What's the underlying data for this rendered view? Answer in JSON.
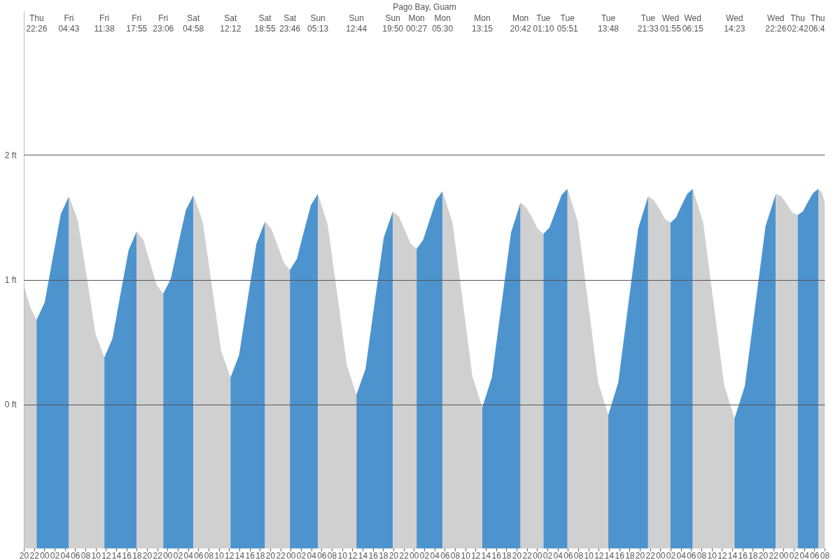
{
  "chart_data": {
    "type": "area",
    "title": "Pago Bay, Guam",
    "series": [
      {
        "color": "#d0d0d0",
        "x": [
          20,
          21.2,
          22.43
        ],
        "values": [
          0.95,
          0.78,
          0.68
        ]
      },
      {
        "color": "#4d94cf",
        "x": [
          22.43,
          24.0,
          25.58,
          27.15,
          28.72
        ],
        "values": [
          0.68,
          0.82,
          1.18,
          1.53,
          1.67
        ]
      },
      {
        "color": "#d0d0d0",
        "x": [
          28.72,
          30.45,
          32.18,
          33.9,
          35.63
        ],
        "values": [
          1.67,
          1.48,
          1.03,
          0.57,
          0.38
        ]
      },
      {
        "color": "#4d94cf",
        "x": [
          35.63,
          37.2,
          38.78,
          40.35,
          41.92
        ],
        "values": [
          0.38,
          0.53,
          0.89,
          1.24,
          1.39
        ]
      },
      {
        "color": "#d0d0d0",
        "x": [
          41.92,
          43.22,
          44.51,
          45.81,
          47.1
        ],
        "values": [
          1.39,
          1.32,
          1.14,
          0.96,
          0.89
        ]
      },
      {
        "color": "#4d94cf",
        "x": [
          47.1,
          48.57,
          50.04,
          51.5,
          52.97
        ],
        "values": [
          0.89,
          1.01,
          1.29,
          1.56,
          1.68
        ]
      },
      {
        "color": "#d0d0d0",
        "x": [
          52.97,
          54.78,
          56.59,
          58.39,
          60.2
        ],
        "values": [
          1.68,
          1.47,
          0.95,
          0.43,
          0.22
        ]
      },
      {
        "color": "#4d94cf",
        "x": [
          60.2,
          61.88,
          63.56,
          65.24,
          66.92
        ],
        "values": [
          0.22,
          0.4,
          0.85,
          1.29,
          1.47
        ]
      },
      {
        "color": "#d0d0d0",
        "x": [
          66.92,
          68.13,
          69.35,
          70.56,
          71.77
        ],
        "values": [
          1.47,
          1.41,
          1.28,
          1.14,
          1.08
        ]
      },
      {
        "color": "#4d94cf",
        "x": [
          71.77,
          73.13,
          74.5,
          75.86,
          77.22
        ],
        "values": [
          1.08,
          1.17,
          1.39,
          1.6,
          1.69
        ]
      },
      {
        "color": "#d0d0d0",
        "x": [
          77.22,
          79.1,
          80.98,
          82.85,
          84.73
        ],
        "values": [
          1.69,
          1.45,
          0.89,
          0.32,
          0.08
        ]
      },
      {
        "color": "#4d94cf",
        "x": [
          84.73,
          86.51,
          88.28,
          90.06,
          91.83
        ],
        "values": [
          0.08,
          0.29,
          0.82,
          1.34,
          1.55
        ]
      },
      {
        "color": "#d0d0d0",
        "x": [
          91.83,
          92.99,
          94.14,
          95.3,
          96.45
        ],
        "values": [
          1.55,
          1.51,
          1.4,
          1.29,
          1.25
        ]
      },
      {
        "color": "#4d94cf",
        "x": [
          96.45,
          97.71,
          98.98,
          100.24,
          101.5
        ],
        "values": [
          1.25,
          1.32,
          1.48,
          1.64,
          1.71
        ]
      },
      {
        "color": "#d0d0d0",
        "x": [
          101.5,
          103.44,
          105.38,
          107.31,
          109.25
        ],
        "values": [
          1.71,
          1.46,
          0.85,
          0.23,
          -0.02
        ]
      },
      {
        "color": "#4d94cf",
        "x": [
          109.25,
          111.11,
          112.98,
          114.84,
          116.7
        ],
        "values": [
          -0.02,
          0.22,
          0.8,
          1.38,
          1.62
        ]
      },
      {
        "color": "#d0d0d0",
        "x": [
          116.7,
          117.82,
          118.94,
          120.05,
          121.17
        ],
        "values": [
          1.62,
          1.58,
          1.5,
          1.41,
          1.37
        ]
      },
      {
        "color": "#4d94cf",
        "x": [
          121.17,
          122.34,
          123.51,
          124.68,
          125.85
        ],
        "values": [
          1.37,
          1.42,
          1.55,
          1.68,
          1.73
        ]
      },
      {
        "color": "#d0d0d0",
        "x": [
          125.85,
          127.84,
          129.83,
          131.81,
          133.8
        ],
        "values": [
          1.73,
          1.47,
          0.83,
          0.18,
          -0.08
        ]
      },
      {
        "color": "#4d94cf",
        "x": [
          133.8,
          135.74,
          137.68,
          139.61,
          141.55
        ],
        "values": [
          -0.08,
          0.18,
          0.8,
          1.41,
          1.67
        ]
      },
      {
        "color": "#d0d0d0",
        "x": [
          141.55,
          142.64,
          143.74,
          144.83,
          145.92
        ],
        "values": [
          1.67,
          1.64,
          1.57,
          1.49,
          1.46
        ]
      },
      {
        "color": "#4d94cf",
        "x": [
          145.92,
          147.0,
          148.09,
          149.17,
          150.25
        ],
        "values": [
          1.46,
          1.5,
          1.6,
          1.69,
          1.73
        ]
      },
      {
        "color": "#d0d0d0",
        "x": [
          150.25,
          152.28,
          154.32,
          156.35,
          158.38
        ],
        "values": [
          1.73,
          1.46,
          0.81,
          0.16,
          -0.11
        ]
      },
      {
        "color": "#4d94cf",
        "x": [
          158.38,
          160.39,
          162.41,
          164.42,
          166.43
        ],
        "values": [
          -0.11,
          0.15,
          0.79,
          1.43,
          1.69
        ]
      },
      {
        "color": "#d0d0d0",
        "x": [
          166.43,
          167.5,
          168.57,
          169.63,
          170.7
        ],
        "values": [
          1.69,
          1.67,
          1.61,
          1.54,
          1.52
        ]
      },
      {
        "color": "#4d94cf",
        "x": [
          170.7,
          171.71,
          172.73,
          173.74,
          174.75
        ],
        "values": [
          1.52,
          1.55,
          1.63,
          1.7,
          1.73
        ]
      },
      {
        "color": "#d0d0d0",
        "x": [
          174.75,
          175.4,
          176
        ],
        "values": [
          1.73,
          1.7,
          1.62
        ]
      }
    ],
    "xlim": [
      20,
      176
    ],
    "xticks": [
      {
        "value": 20,
        "label": "20"
      },
      {
        "value": 22,
        "label": "22"
      },
      {
        "value": 24,
        "label": "00"
      },
      {
        "value": 26,
        "label": "02"
      },
      {
        "value": 28,
        "label": "04"
      },
      {
        "value": 30,
        "label": "06"
      },
      {
        "value": 32,
        "label": "08"
      },
      {
        "value": 34,
        "label": "10"
      },
      {
        "value": 36,
        "label": "12"
      },
      {
        "value": 38,
        "label": "14"
      },
      {
        "value": 40,
        "label": "16"
      },
      {
        "value": 42,
        "label": "18"
      },
      {
        "value": 44,
        "label": "20"
      },
      {
        "value": 46,
        "label": "22"
      },
      {
        "value": 48,
        "label": "00"
      },
      {
        "value": 50,
        "label": "02"
      },
      {
        "value": 52,
        "label": "04"
      },
      {
        "value": 54,
        "label": "06"
      },
      {
        "value": 56,
        "label": "08"
      },
      {
        "value": 58,
        "label": "10"
      },
      {
        "value": 60,
        "label": "12"
      },
      {
        "value": 62,
        "label": "14"
      },
      {
        "value": 64,
        "label": "16"
      },
      {
        "value": 66,
        "label": "18"
      },
      {
        "value": 68,
        "label": "20"
      },
      {
        "value": 70,
        "label": "22"
      },
      {
        "value": 72,
        "label": "00"
      },
      {
        "value": 74,
        "label": "02"
      },
      {
        "value": 76,
        "label": "04"
      },
      {
        "value": 78,
        "label": "06"
      },
      {
        "value": 80,
        "label": "08"
      },
      {
        "value": 82,
        "label": "10"
      },
      {
        "value": 84,
        "label": "12"
      },
      {
        "value": 86,
        "label": "14"
      },
      {
        "value": 88,
        "label": "16"
      },
      {
        "value": 90,
        "label": "18"
      },
      {
        "value": 92,
        "label": "20"
      },
      {
        "value": 94,
        "label": "22"
      },
      {
        "value": 96,
        "label": "00"
      },
      {
        "value": 98,
        "label": "02"
      },
      {
        "value": 100,
        "label": "04"
      },
      {
        "value": 102,
        "label": "06"
      },
      {
        "value": 104,
        "label": "08"
      },
      {
        "value": 106,
        "label": "10"
      },
      {
        "value": 108,
        "label": "12"
      },
      {
        "value": 110,
        "label": "14"
      },
      {
        "value": 112,
        "label": "16"
      },
      {
        "value": 114,
        "label": "18"
      },
      {
        "value": 116,
        "label": "20"
      },
      {
        "value": 118,
        "label": "22"
      },
      {
        "value": 120,
        "label": "00"
      },
      {
        "value": 122,
        "label": "02"
      },
      {
        "value": 124,
        "label": "04"
      },
      {
        "value": 126,
        "label": "06"
      },
      {
        "value": 128,
        "label": "08"
      },
      {
        "value": 130,
        "label": "10"
      },
      {
        "value": 132,
        "label": "12"
      },
      {
        "value": 134,
        "label": "14"
      },
      {
        "value": 136,
        "label": "16"
      },
      {
        "value": 138,
        "label": "18"
      },
      {
        "value": 140,
        "label": "20"
      },
      {
        "value": 142,
        "label": "22"
      },
      {
        "value": 144,
        "label": "00"
      },
      {
        "value": 146,
        "label": "02"
      },
      {
        "value": 148,
        "label": "04"
      },
      {
        "value": 150,
        "label": "06"
      },
      {
        "value": 152,
        "label": "08"
      },
      {
        "value": 154,
        "label": "10"
      },
      {
        "value": 156,
        "label": "12"
      },
      {
        "value": 158,
        "label": "14"
      },
      {
        "value": 160,
        "label": "16"
      },
      {
        "value": 162,
        "label": "18"
      },
      {
        "value": 164,
        "label": "20"
      },
      {
        "value": 166,
        "label": "22"
      },
      {
        "value": 168,
        "label": "00"
      },
      {
        "value": 170,
        "label": "02"
      },
      {
        "value": 172,
        "label": "04"
      },
      {
        "value": 174,
        "label": "06"
      },
      {
        "value": 176,
        "label": "08"
      }
    ],
    "annotations": [
      "Thu\n22:26",
      "Fri\n04:43",
      "Fri\n11:38",
      "Fri\n17:55",
      "Fri\n23:06",
      "Sat\n04:58",
      "Sat\n12:12",
      "Sat\n18:55",
      "Sat\n23:46",
      "Sun\n05:13",
      "Sun\n12:44",
      "Sun\n19:50",
      "Mon\n00:27",
      "Mon\n05:30",
      "Mon\n13:15",
      "Mon\n20:42",
      "Tue\n01:10",
      "Tue\n05:51",
      "Tue\n13:48",
      "Tue\n21:33",
      "Wed\n01:55",
      "Wed\n06:15",
      "Wed\n14:23",
      "Wed\n22:26",
      "Thu\n02:42",
      "Thu\n06:4"
    ],
    "ylim": [
      -1.15,
      3.15
    ],
    "yticks": [
      {
        "value": 0,
        "label": "0 ft"
      },
      {
        "value": 1,
        "label": "1 ft"
      },
      {
        "value": 2,
        "label": "2 ft"
      }
    ],
    "grid": "y"
  }
}
